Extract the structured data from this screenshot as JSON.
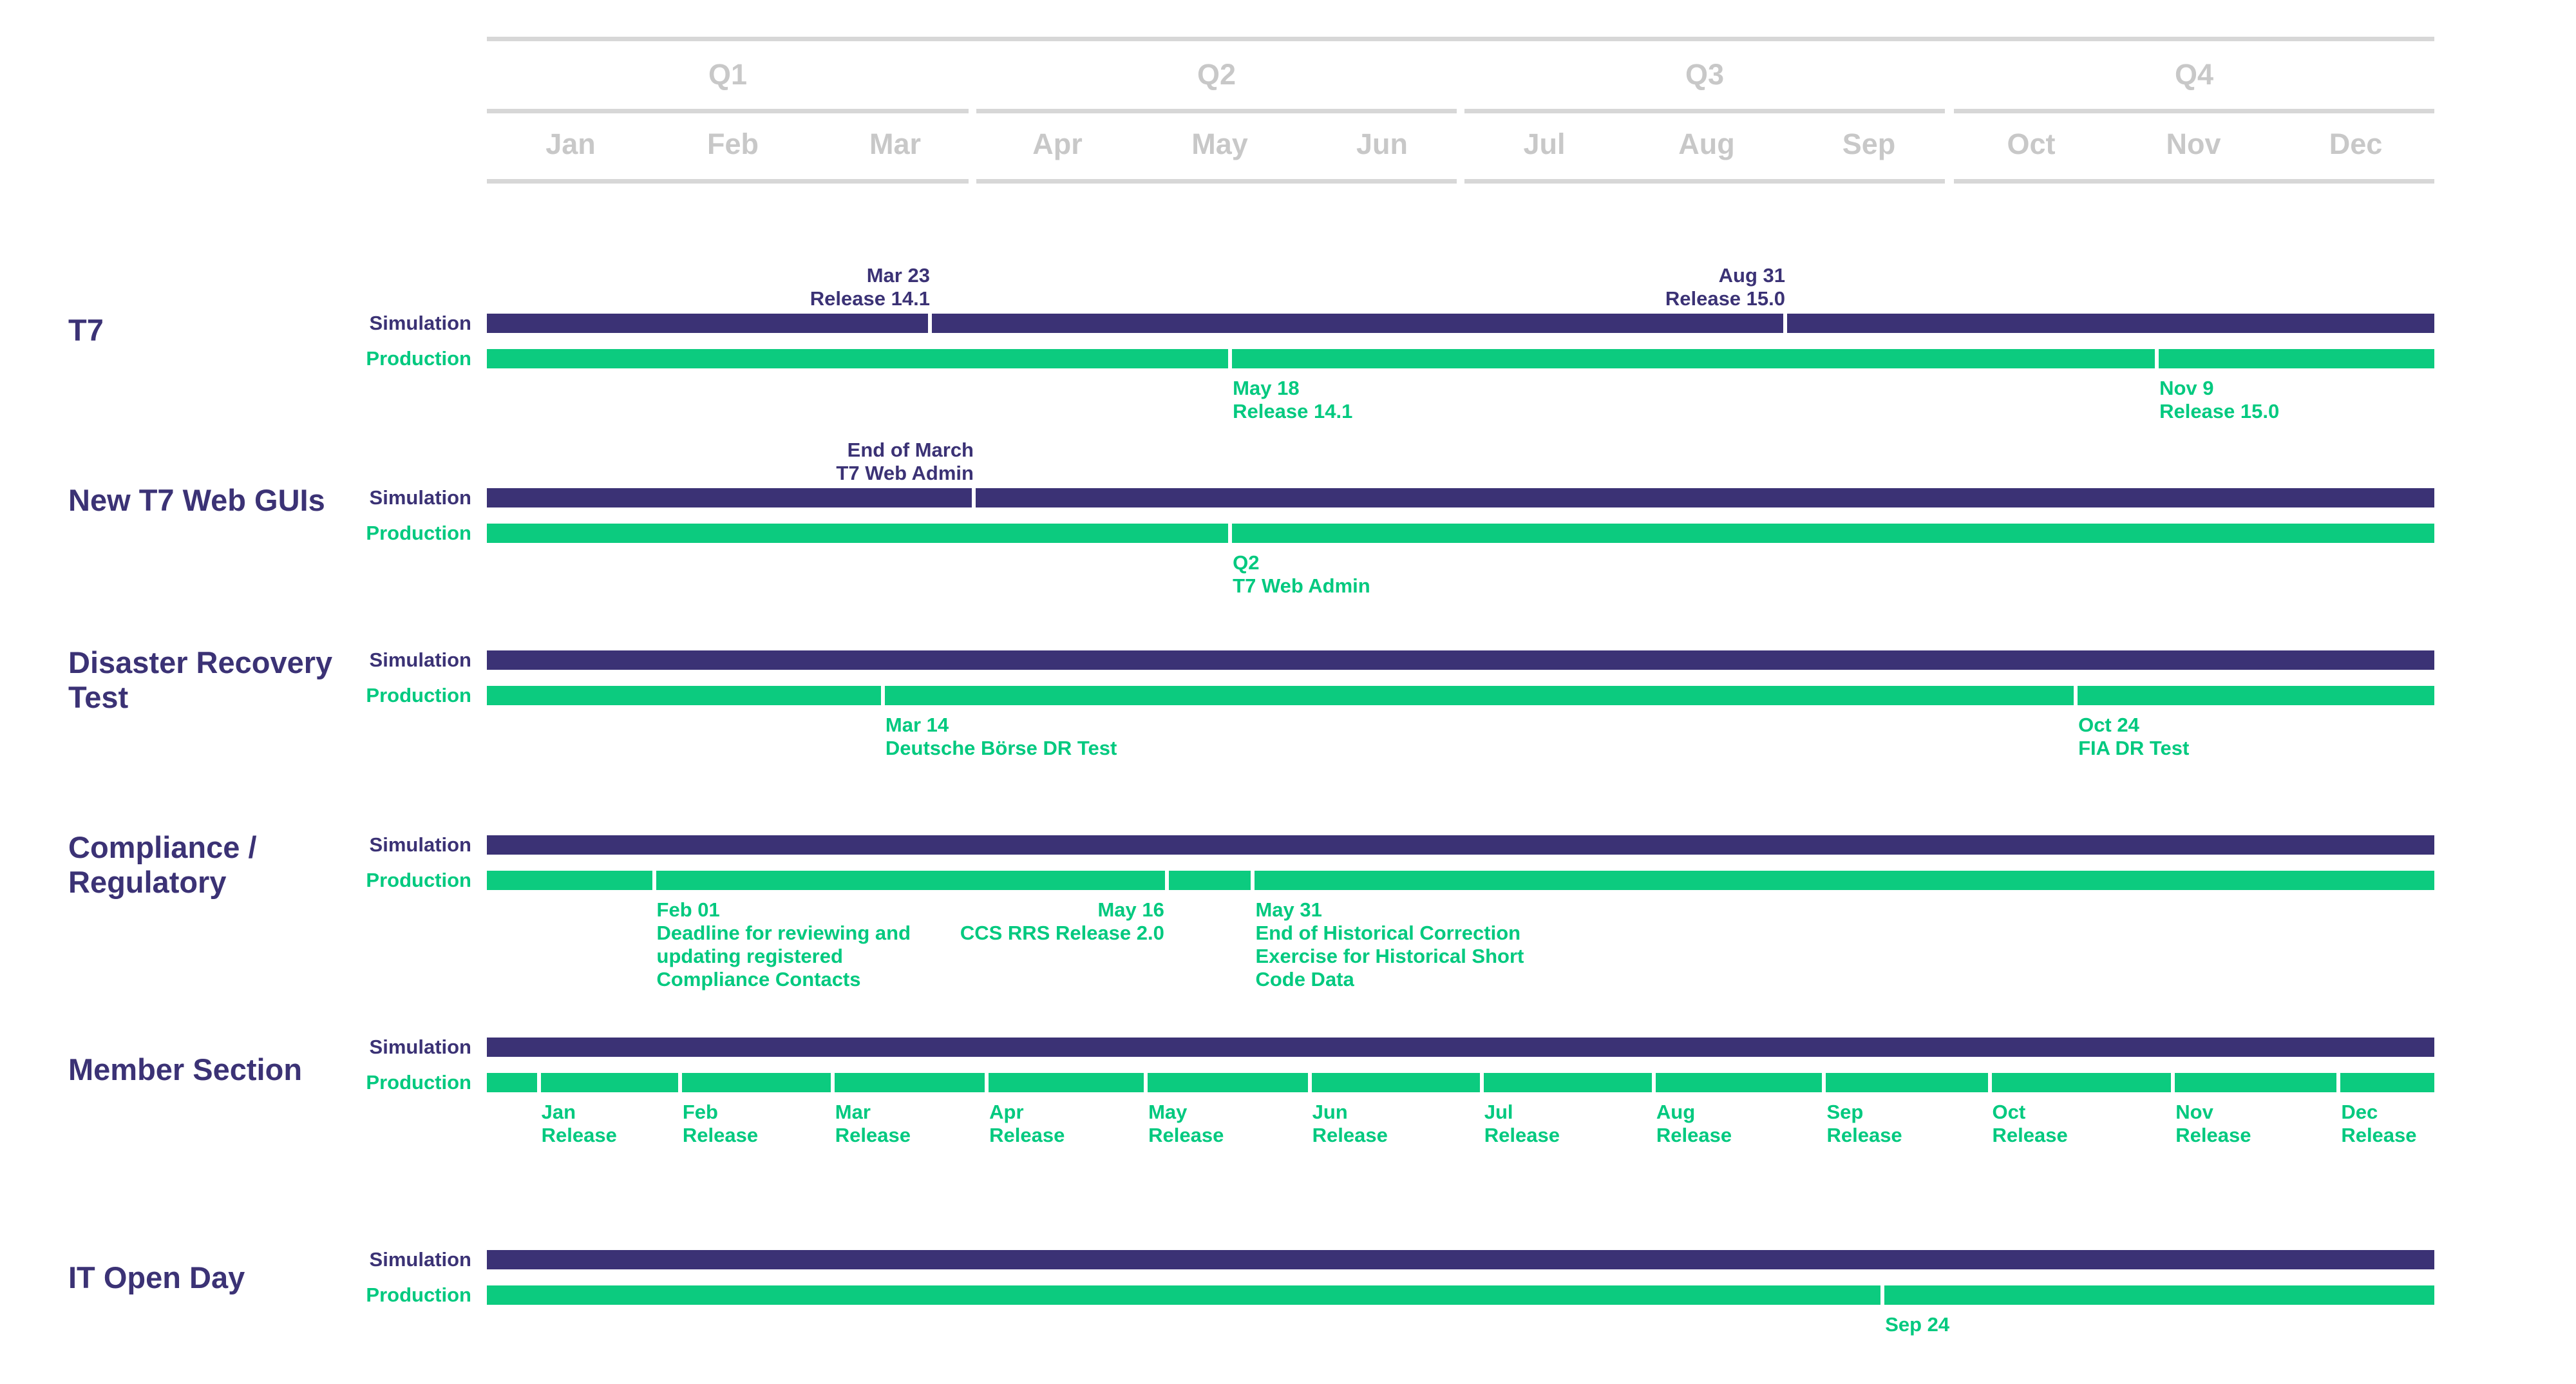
{
  "header": {
    "quarters": [
      "Q1",
      "Q2",
      "Q3",
      "Q4"
    ],
    "months": [
      "Jan",
      "Feb",
      "Mar",
      "Apr",
      "May",
      "Jun",
      "Jul",
      "Aug",
      "Sep",
      "Oct",
      "Nov",
      "Dec"
    ]
  },
  "row_labels": {
    "simulation": "Simulation",
    "production": "Production"
  },
  "colors": {
    "simulation": "#3b3275",
    "production": "#0ccb7f",
    "header": "#c8c8c8"
  },
  "sections": [
    {
      "title": "T7",
      "simulation": [
        {
          "date": "Mar 23",
          "text": "Release 14.1",
          "month_pos": 2.73
        },
        {
          "date": "Aug 31",
          "text": "Release 15.0",
          "month_pos": 8.0
        }
      ],
      "production": [
        {
          "date": "May 18",
          "text": "Release 14.1",
          "month_pos": 4.58
        },
        {
          "date": "Nov 9",
          "text": "Release 15.0",
          "month_pos": 10.29
        }
      ]
    },
    {
      "title": "New T7 Web GUIs",
      "simulation": [
        {
          "date": "End of March",
          "text": "T7 Web Admin",
          "month_pos": 3.0
        }
      ],
      "production": [
        {
          "date": "Q2",
          "text": "T7 Web Admin",
          "month_pos": 4.58
        }
      ]
    },
    {
      "title": "Disaster Recovery Test",
      "simulation": [],
      "production": [
        {
          "date": "Mar 14",
          "text": "Deutsche Börse DR Test",
          "month_pos": 2.44
        },
        {
          "date": "Oct 24",
          "text": "FIA DR Test",
          "month_pos": 9.79
        }
      ]
    },
    {
      "title": "Compliance / Regulatory",
      "simulation": [],
      "production": [
        {
          "date": "Feb 01",
          "text": "Deadline for reviewing and updating registered Compliance Contacts",
          "month_pos": 1.03
        },
        {
          "date": "May 16",
          "text": "CCS RRS Release 2.0",
          "month_pos": 4.19,
          "align": "right"
        },
        {
          "date": "May 31",
          "text": "End of Historical Correction Exercise for Historical Short Code Data",
          "month_pos": 4.72
        }
      ]
    },
    {
      "title": "Member Section",
      "simulation": [],
      "production": [
        {
          "date": "Jan",
          "text": "Release",
          "month_pos": 0.32
        },
        {
          "date": "Feb",
          "text": "Release",
          "month_pos": 1.19
        },
        {
          "date": "Mar",
          "text": "Release",
          "month_pos": 2.13
        },
        {
          "date": "Apr",
          "text": "Release",
          "month_pos": 3.08
        },
        {
          "date": "May",
          "text": "Release",
          "month_pos": 4.06
        },
        {
          "date": "Jun",
          "text": "Release",
          "month_pos": 5.07
        },
        {
          "date": "Jul",
          "text": "Release",
          "month_pos": 6.13
        },
        {
          "date": "Aug",
          "text": "Release",
          "month_pos": 7.19
        },
        {
          "date": "Sep",
          "text": "Release",
          "month_pos": 8.24
        },
        {
          "date": "Oct",
          "text": "Release",
          "month_pos": 9.26
        },
        {
          "date": "Nov",
          "text": "Release",
          "month_pos": 10.39
        },
        {
          "date": "Dec",
          "text": "Release",
          "month_pos": 11.41
        }
      ]
    },
    {
      "title": "IT Open Day",
      "simulation": [],
      "production": [
        {
          "date": "Sep 24",
          "text": "",
          "month_pos": 8.6
        }
      ]
    }
  ]
}
